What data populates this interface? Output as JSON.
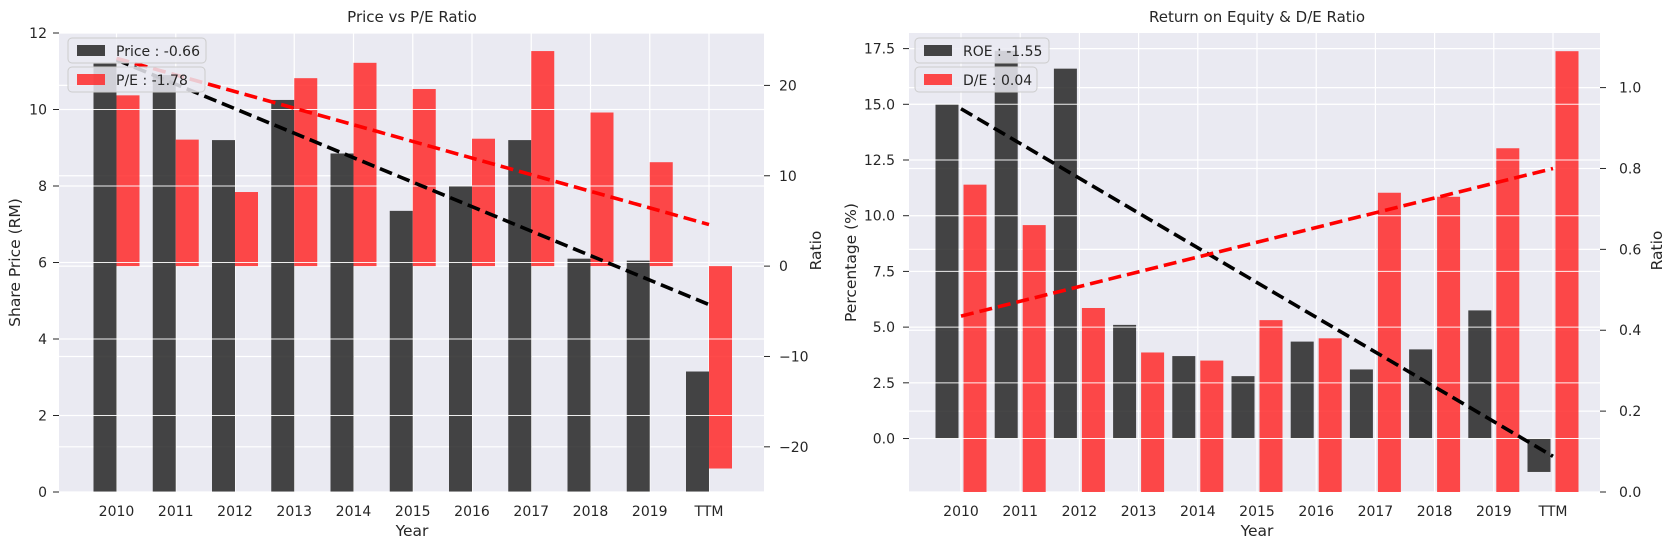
{
  "colors": {
    "background": "#eaeaf2",
    "grid": "#ffffff",
    "black_bar": "#262626",
    "red_bar": "#ff2a2a",
    "black_trend": "#000000",
    "red_trend": "#ff0000"
  },
  "chart_data": [
    {
      "type": "bar",
      "title": "Price vs P/E Ratio",
      "xlabel": "Year",
      "ylabel_left": "Share Price (RM)",
      "ylabel_right": "Ratio",
      "categories": [
        "2010",
        "2011",
        "2012",
        "2013",
        "2014",
        "2015",
        "2016",
        "2017",
        "2018",
        "2019",
        "TTM"
      ],
      "ylim_left": [
        0,
        12
      ],
      "ylim_right": [
        -25,
        25.8
      ],
      "yticks_left": [
        "0",
        "2",
        "4",
        "6",
        "8",
        "10",
        "12"
      ],
      "yticks_right": [
        "−20",
        "−10",
        "0",
        "10",
        "20"
      ],
      "grid": true,
      "legend_position": "top-left",
      "series": [
        {
          "name": "Price : -0.66",
          "axis": "left",
          "color": "black",
          "values": [
            11.2,
            10.9,
            9.2,
            10.25,
            8.85,
            7.35,
            8.0,
            9.2,
            6.1,
            6.05,
            3.15
          ]
        },
        {
          "name": "P/E : -1.78",
          "axis": "right",
          "color": "red",
          "values": [
            18.9,
            14.0,
            8.2,
            20.8,
            22.5,
            19.6,
            14.1,
            23.8,
            17.0,
            11.5,
            -22.4
          ]
        }
      ],
      "trendlines": [
        {
          "axis": "left",
          "color": "black",
          "from": [
            0,
            11.3
          ],
          "to": [
            10,
            4.9
          ]
        },
        {
          "axis": "right",
          "color": "red",
          "from": [
            0,
            23.0
          ],
          "to": [
            10,
            4.6
          ]
        }
      ]
    },
    {
      "type": "bar",
      "title": "Return on Equity & D/E Ratio",
      "xlabel": "Year",
      "ylabel_left": "Percentage (%)",
      "ylabel_right": "Ratio",
      "categories": [
        "2010",
        "2011",
        "2012",
        "2013",
        "2014",
        "2015",
        "2016",
        "2017",
        "2018",
        "2019",
        "TTM"
      ],
      "ylim_left": [
        -2.4,
        18.2
      ],
      "ylim_right": [
        0,
        1.135
      ],
      "yticks_left": [
        "0.0",
        "2.5",
        "5.0",
        "7.5",
        "10.0",
        "12.5",
        "15.0",
        "17.5"
      ],
      "yticks_right": [
        "0.0",
        "0.2",
        "0.4",
        "0.6",
        "0.8",
        "1.0"
      ],
      "grid": true,
      "legend_position": "top-left",
      "series": [
        {
          "name": "ROE : -1.55",
          "axis": "left",
          "color": "black",
          "values": [
            15.0,
            17.4,
            16.6,
            5.1,
            3.7,
            2.8,
            4.35,
            3.1,
            4.0,
            5.75,
            -1.5
          ]
        },
        {
          "name": "D/E : 0.04",
          "axis": "right",
          "color": "red",
          "values": [
            0.76,
            0.66,
            0.455,
            0.345,
            0.325,
            0.425,
            0.38,
            0.74,
            0.73,
            0.85,
            1.09
          ]
        }
      ],
      "trendlines": [
        {
          "axis": "left",
          "color": "black",
          "from": [
            0,
            14.8
          ],
          "to": [
            10,
            -0.8
          ]
        },
        {
          "axis": "right",
          "color": "red",
          "from": [
            0,
            0.435
          ],
          "to": [
            10,
            0.8
          ]
        }
      ]
    }
  ]
}
